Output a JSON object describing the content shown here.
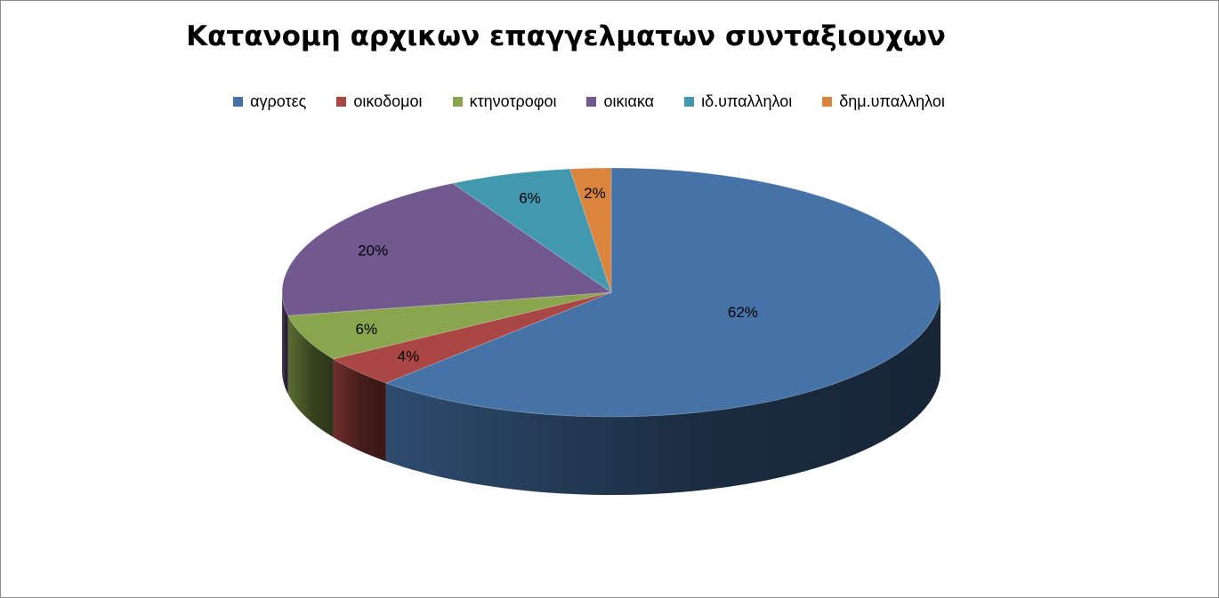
{
  "chart_data": {
    "type": "pie",
    "title": "Κατανομη αρχικων επαγγελματων συνταξιουχων",
    "categories": [
      "αγροτες",
      "οικοδομοι",
      "κτηνοτροφοι",
      "οικιακα",
      "ιδ.υπαλληλοι",
      "δημ.υπαλληλοι"
    ],
    "values": [
      62,
      4,
      6,
      20,
      6,
      2
    ],
    "labels": [
      "62%",
      "4%",
      "6%",
      "20%",
      "6%",
      "2%"
    ],
    "colors": [
      "#4572A7",
      "#AA4643",
      "#89A54E",
      "#71588F",
      "#4198AF",
      "#DB843D"
    ],
    "legend_position": "top"
  }
}
